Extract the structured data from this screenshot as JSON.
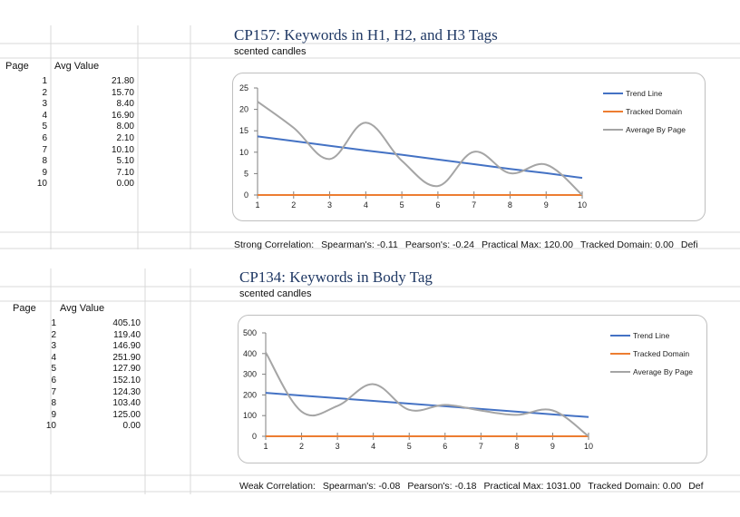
{
  "sheets": [
    {
      "title": "CP157: Keywords in H1, H2, and H3 Tags",
      "subtitle": "scented candles",
      "table": {
        "page_header": "Page",
        "avg_header": "Avg Value",
        "rows": [
          {
            "page": "1",
            "avg": "21.80"
          },
          {
            "page": "2",
            "avg": "15.70"
          },
          {
            "page": "3",
            "avg": "8.40"
          },
          {
            "page": "4",
            "avg": "16.90"
          },
          {
            "page": "5",
            "avg": "8.00"
          },
          {
            "page": "6",
            "avg": "2.10"
          },
          {
            "page": "7",
            "avg": "10.10"
          },
          {
            "page": "8",
            "avg": "5.10"
          },
          {
            "page": "9",
            "avg": "7.10"
          },
          {
            "page": "10",
            "avg": "0.00"
          }
        ]
      },
      "footer": {
        "correlation": "Strong Correlation:",
        "spearman": "Spearman's: -0.11",
        "pearson": "Pearson's: -0.24",
        "practical_max": "Practical Max: 120.00",
        "tracked": "Tracked Domain: 0.00",
        "trailing": "Defi"
      }
    },
    {
      "title": "CP134: Keywords in Body Tag",
      "subtitle": "scented candles",
      "table": {
        "page_header": "Page",
        "avg_header": "Avg Value",
        "rows": [
          {
            "page": "1",
            "avg": "405.10"
          },
          {
            "page": "2",
            "avg": "119.40"
          },
          {
            "page": "3",
            "avg": "146.90"
          },
          {
            "page": "4",
            "avg": "251.90"
          },
          {
            "page": "5",
            "avg": "127.90"
          },
          {
            "page": "6",
            "avg": "152.10"
          },
          {
            "page": "7",
            "avg": "124.30"
          },
          {
            "page": "8",
            "avg": "103.40"
          },
          {
            "page": "9",
            "avg": "125.00"
          },
          {
            "page": "10",
            "avg": "0.00"
          }
        ]
      },
      "footer": {
        "correlation": "Weak Correlation:",
        "spearman": "Spearman's: -0.08",
        "pearson": "Pearson's: -0.18",
        "practical_max": "Practical Max: 1031.00",
        "tracked": "Tracked Domain: 0.00",
        "trailing": "Def"
      }
    }
  ],
  "chart_data": [
    {
      "type": "line",
      "x": [
        1,
        2,
        3,
        4,
        5,
        6,
        7,
        8,
        9,
        10
      ],
      "ylim": [
        0,
        25
      ],
      "yticks": [
        0,
        5,
        10,
        15,
        20,
        25
      ],
      "series": [
        {
          "name": "Trend Line",
          "color": "#4472c4",
          "values": [
            13.7,
            12.6,
            11.5,
            10.4,
            9.4,
            8.3,
            7.2,
            6.1,
            5.1,
            4.0
          ]
        },
        {
          "name": "Tracked Domain",
          "color": "#ed7d31",
          "values": [
            0,
            0,
            0,
            0,
            0,
            0,
            0,
            0,
            0,
            0
          ]
        },
        {
          "name": "Average By Page",
          "color": "#a5a5a5",
          "values": [
            21.8,
            15.7,
            8.4,
            16.9,
            8.0,
            2.1,
            10.1,
            5.1,
            7.1,
            0.0
          ]
        }
      ],
      "legend": "right"
    },
    {
      "type": "line",
      "x": [
        1,
        2,
        3,
        4,
        5,
        6,
        7,
        8,
        9,
        10
      ],
      "ylim": [
        0,
        500
      ],
      "yticks": [
        0,
        100,
        200,
        300,
        400,
        500
      ],
      "series": [
        {
          "name": "Trend Line",
          "color": "#4472c4",
          "values": [
            210,
            197,
            184,
            171,
            158,
            145,
            132,
            119,
            106,
            93
          ]
        },
        {
          "name": "Tracked Domain",
          "color": "#ed7d31",
          "values": [
            0,
            0,
            0,
            0,
            0,
            0,
            0,
            0,
            0,
            0
          ]
        },
        {
          "name": "Average By Page",
          "color": "#a5a5a5",
          "values": [
            405.1,
            119.4,
            146.9,
            251.9,
            127.9,
            152.1,
            124.3,
            103.4,
            125.0,
            0.0
          ]
        }
      ],
      "legend": "right"
    }
  ]
}
